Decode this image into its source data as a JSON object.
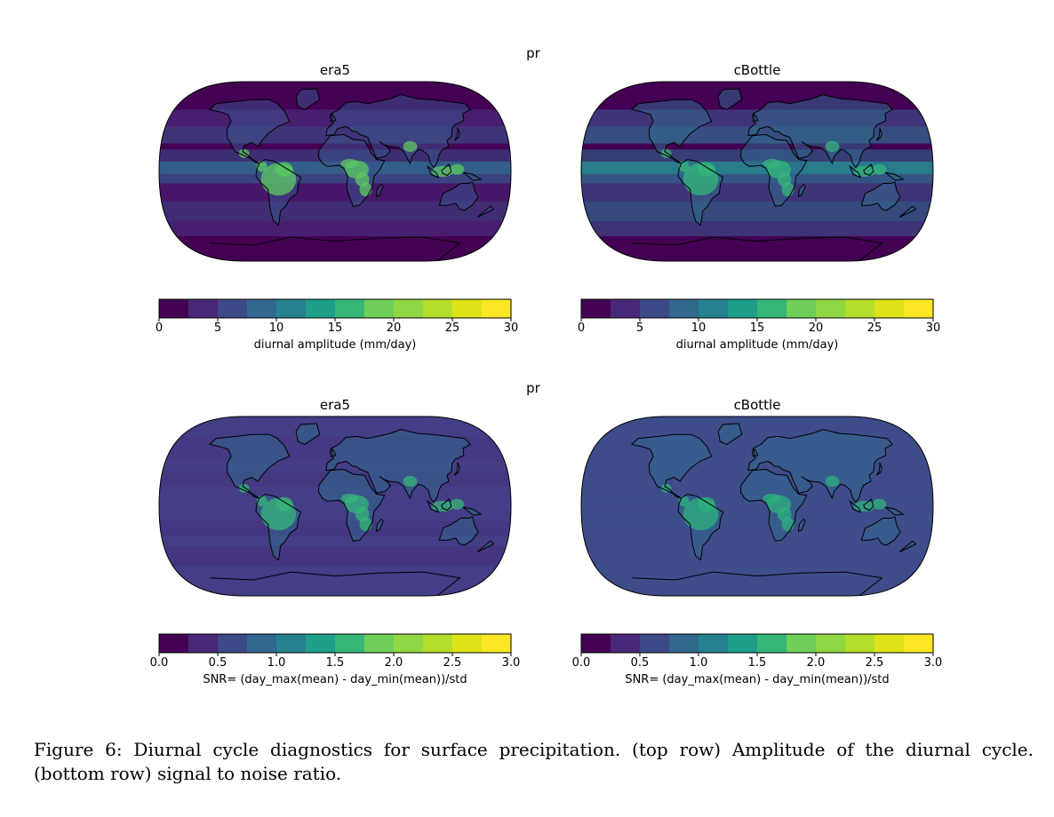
{
  "figure": {
    "rows": [
      {
        "suptitle": "pr",
        "panels": [
          {
            "title": "era5",
            "theme": "amp_era5"
          },
          {
            "title": "cBottle",
            "theme": "amp_cbottle"
          }
        ],
        "colorbar": {
          "ticks": [
            "0",
            "5",
            "10",
            "15",
            "20",
            "25",
            "30"
          ],
          "label": "diurnal amplitude (mm/day)"
        }
      },
      {
        "suptitle": "pr",
        "panels": [
          {
            "title": "era5",
            "theme": "snr_era5"
          },
          {
            "title": "cBottle",
            "theme": "snr_cbottle"
          }
        ],
        "colorbar": {
          "ticks": [
            "0.0",
            "0.5",
            "1.0",
            "1.5",
            "2.0",
            "2.5",
            "3.0"
          ],
          "label": "SNR= (day_max(mean) - day_min(mean))/std"
        }
      }
    ],
    "colormap": "viridis",
    "colorbar_levels": [
      "#440154",
      "#482777",
      "#3f4a8a",
      "#31688e",
      "#26838f",
      "#1f9d8a",
      "#22a884",
      "#6cce5a",
      "#9fd938",
      "#b6de2b",
      "#fde725"
    ],
    "caption": {
      "line1": "Figure 6: Diurnal cycle diagnostics for surface precipitation. (top row) Amplitude of the diurnal cycle.",
      "line2": "(bottom row) signal to noise ratio."
    }
  }
}
